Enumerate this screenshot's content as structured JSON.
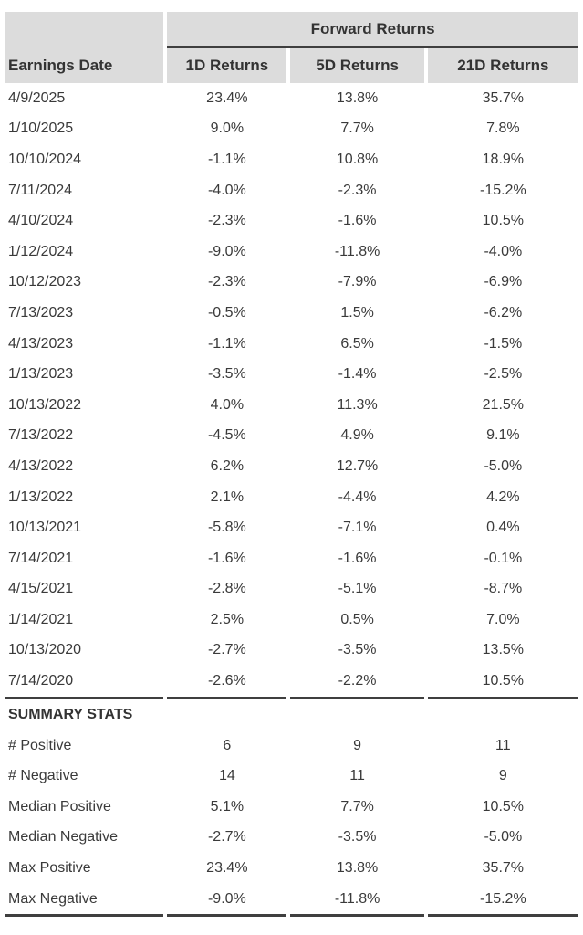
{
  "colors": {
    "header_bg": "#dcdcdc",
    "header_text": "#333333",
    "text": "#3a3a3a",
    "border": "#3f3f3f"
  },
  "chart_data": {
    "type": "table",
    "group_header": "Forward Returns",
    "columns": [
      "Earnings Date",
      "1D Returns",
      "5D Returns",
      "21D Returns"
    ],
    "rows": [
      [
        "4/9/2025",
        "23.4%",
        "13.8%",
        "35.7%"
      ],
      [
        "1/10/2025",
        "9.0%",
        "7.7%",
        "7.8%"
      ],
      [
        "10/10/2024",
        "-1.1%",
        "10.8%",
        "18.9%"
      ],
      [
        "7/11/2024",
        "-4.0%",
        "-2.3%",
        "-15.2%"
      ],
      [
        "4/10/2024",
        "-2.3%",
        "-1.6%",
        "10.5%"
      ],
      [
        "1/12/2024",
        "-9.0%",
        "-11.8%",
        "-4.0%"
      ],
      [
        "10/12/2023",
        "-2.3%",
        "-7.9%",
        "-6.9%"
      ],
      [
        "7/13/2023",
        "-0.5%",
        "1.5%",
        "-6.2%"
      ],
      [
        "4/13/2023",
        "-1.1%",
        "6.5%",
        "-1.5%"
      ],
      [
        "1/13/2023",
        "-3.5%",
        "-1.4%",
        "-2.5%"
      ],
      [
        "10/13/2022",
        "4.0%",
        "11.3%",
        "21.5%"
      ],
      [
        "7/13/2022",
        "-4.5%",
        "4.9%",
        "9.1%"
      ],
      [
        "4/13/2022",
        "6.2%",
        "12.7%",
        "-5.0%"
      ],
      [
        "1/13/2022",
        "2.1%",
        "-4.4%",
        "4.2%"
      ],
      [
        "10/13/2021",
        "-5.8%",
        "-7.1%",
        "0.4%"
      ],
      [
        "7/14/2021",
        "-1.6%",
        "-1.6%",
        "-0.1%"
      ],
      [
        "4/15/2021",
        "-2.8%",
        "-5.1%",
        "-8.7%"
      ],
      [
        "1/14/2021",
        "2.5%",
        "0.5%",
        "7.0%"
      ],
      [
        "10/13/2020",
        "-2.7%",
        "-3.5%",
        "13.5%"
      ],
      [
        "7/14/2020",
        "-2.6%",
        "-2.2%",
        "10.5%"
      ]
    ],
    "summary_header": "SUMMARY STATS",
    "summary_rows": [
      [
        "# Positive",
        "6",
        "9",
        "11"
      ],
      [
        "# Negative",
        "14",
        "11",
        "9"
      ],
      [
        "Median Positive",
        "5.1%",
        "7.7%",
        "10.5%"
      ],
      [
        "Median Negative",
        "-2.7%",
        "-3.5%",
        "-5.0%"
      ],
      [
        "Max Positive",
        "23.4%",
        "13.8%",
        "35.7%"
      ],
      [
        "Max Negative",
        "-9.0%",
        "-11.8%",
        "-15.2%"
      ]
    ]
  }
}
